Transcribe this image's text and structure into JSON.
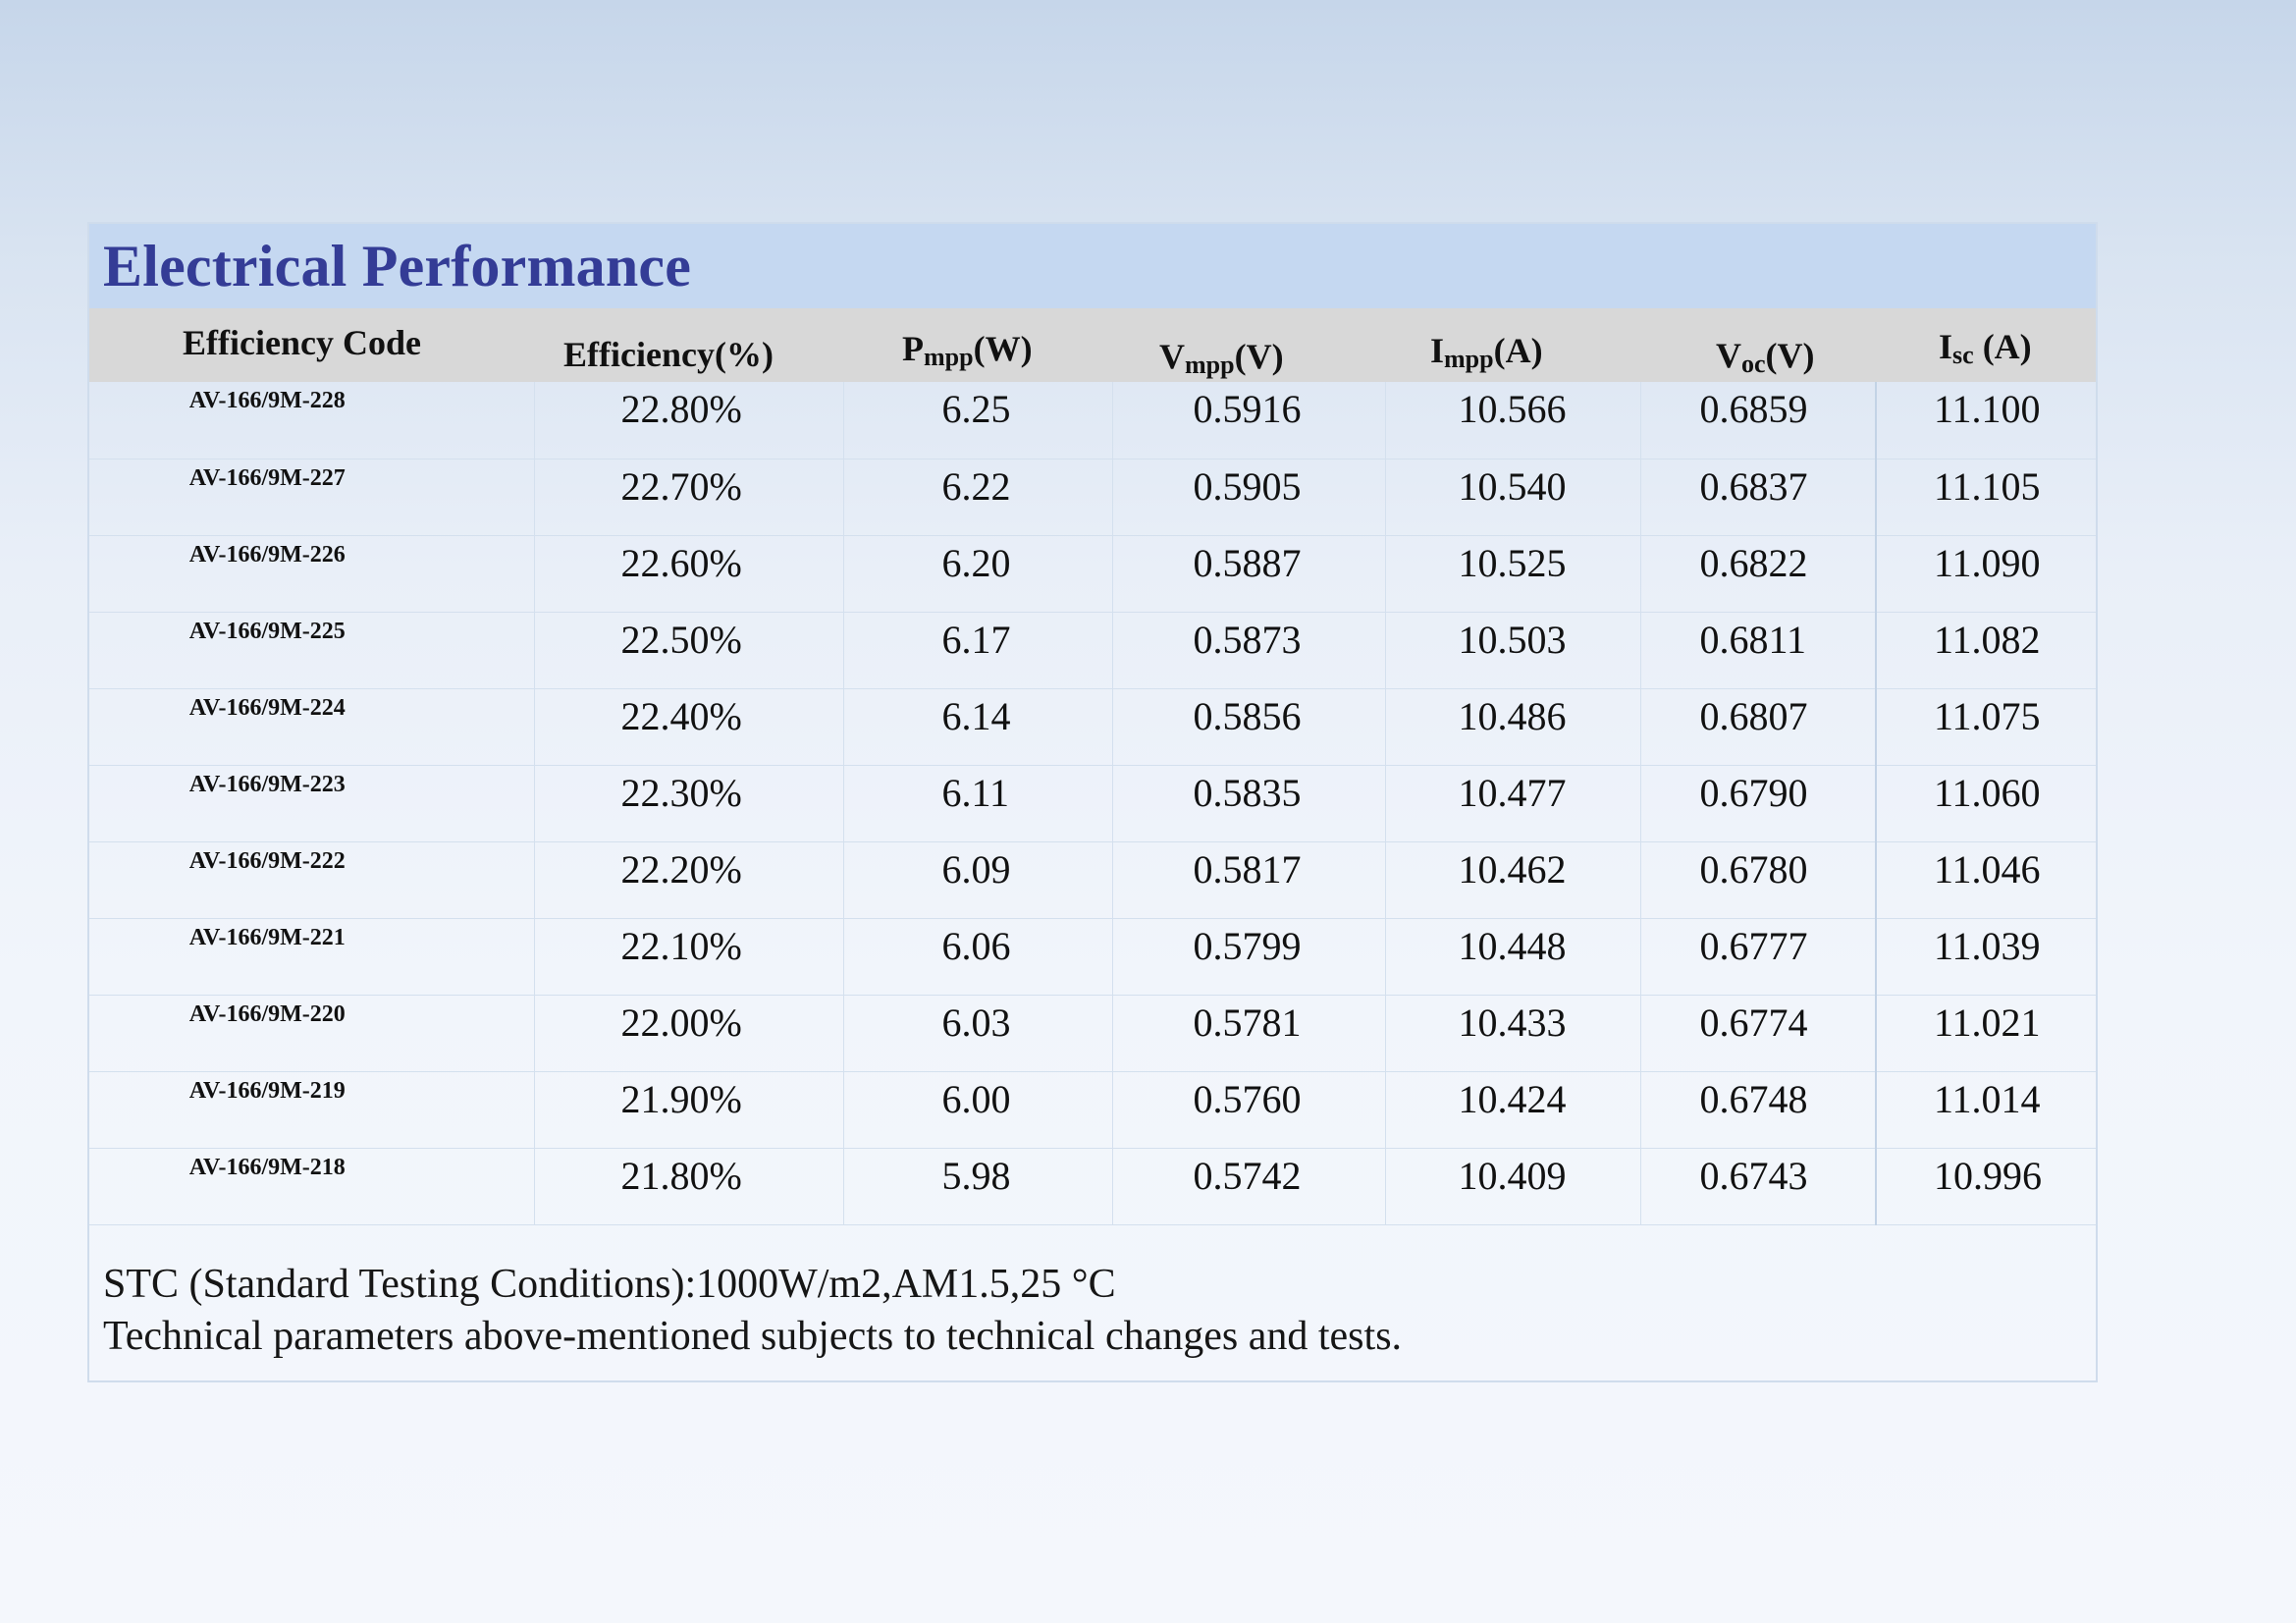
{
  "title": "Electrical Performance",
  "columns": [
    {
      "main": "Efficiency Code",
      "sub": "",
      "suffix": ""
    },
    {
      "main": "Efficiency(%)",
      "sub": "",
      "suffix": ""
    },
    {
      "main": "P",
      "sub": "mpp",
      "suffix": "(W)"
    },
    {
      "main": "V",
      "sub": "mpp",
      "suffix": "(V)"
    },
    {
      "main": "I",
      "sub": "mpp",
      "suffix": "(A)"
    },
    {
      "main": "V",
      "sub": "oc",
      "suffix": "(V)"
    },
    {
      "main": "I",
      "sub": "sc",
      "suffix": " (A)"
    }
  ],
  "rows": [
    [
      "AV-166/9M-228",
      "22.80%",
      "6.25",
      "0.5916",
      "10.566",
      "0.6859",
      "11.100"
    ],
    [
      "AV-166/9M-227",
      "22.70%",
      "6.22",
      "0.5905",
      "10.540",
      "0.6837",
      "11.105"
    ],
    [
      "AV-166/9M-226",
      "22.60%",
      "6.20",
      "0.5887",
      "10.525",
      "0.6822",
      "11.090"
    ],
    [
      "AV-166/9M-225",
      "22.50%",
      "6.17",
      "0.5873",
      "10.503",
      "0.6811",
      "11.082"
    ],
    [
      "AV-166/9M-224",
      "22.40%",
      "6.14",
      "0.5856",
      "10.486",
      "0.6807",
      "11.075"
    ],
    [
      "AV-166/9M-223",
      "22.30%",
      "6.11",
      "0.5835",
      "10.477",
      "0.6790",
      "11.060"
    ],
    [
      "AV-166/9M-222",
      "22.20%",
      "6.09",
      "0.5817",
      "10.462",
      "0.6780",
      "11.046"
    ],
    [
      "AV-166/9M-221",
      "22.10%",
      "6.06",
      "0.5799",
      "10.448",
      "0.6777",
      "11.039"
    ],
    [
      "AV-166/9M-220",
      "22.00%",
      "6.03",
      "0.5781",
      "10.433",
      "0.6774",
      "11.021"
    ],
    [
      "AV-166/9M-219",
      "21.90%",
      "6.00",
      "0.5760",
      "10.424",
      "0.6748",
      "11.014"
    ],
    [
      "AV-166/9M-218",
      "21.80%",
      "5.98",
      "0.5742",
      "10.409",
      "0.6743",
      "10.996"
    ]
  ],
  "notes": {
    "stc": "STC (Standard Testing Conditions):1000W/m2,AM1.5,25 °C",
    "disclaimer": "Technical parameters above-mentioned subjects to technical changes and tests."
  }
}
